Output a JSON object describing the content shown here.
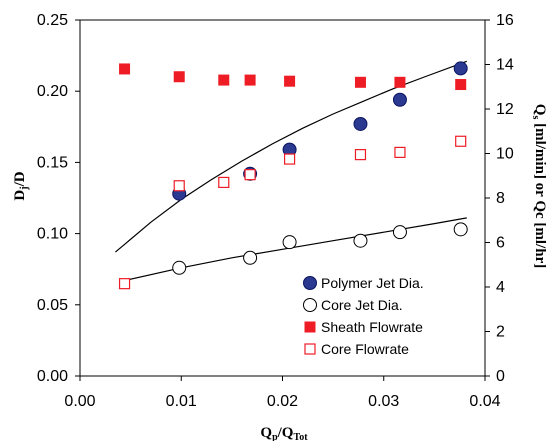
{
  "chart_data": {
    "type": "scatter",
    "xlabel": {
      "main": "Q",
      "sub1": "p",
      "mid": "/Q",
      "sub2": "Tot"
    },
    "ylabel_left": {
      "main": "D",
      "sub": "j",
      "rest": "/D"
    },
    "ylabel_right": {
      "main": "Q",
      "sub": "s",
      "rest": " [ml/min] or Qc [ml/hr]"
    },
    "xlim": [
      0,
      0.04
    ],
    "ylim_left": [
      0,
      0.25
    ],
    "ylim_right": [
      0,
      16
    ],
    "x_ticks": [
      0.0,
      0.01,
      0.02,
      0.03,
      0.04
    ],
    "x_tick_labels": [
      "0.00",
      "0.01",
      "0.02",
      "0.03",
      "0.04"
    ],
    "y_left_ticks": [
      0.0,
      0.05,
      0.1,
      0.15,
      0.2,
      0.25
    ],
    "y_left_tick_labels": [
      "0.00",
      "0.05",
      "0.10",
      "0.15",
      "0.20",
      "0.25"
    ],
    "y_right_ticks": [
      0,
      2,
      4,
      6,
      8,
      10,
      12,
      14,
      16
    ],
    "y_right_tick_labels": [
      "0",
      "2",
      "4",
      "6",
      "8",
      "10",
      "12",
      "14",
      "16"
    ],
    "grid": false,
    "legend_position": "bottom-right",
    "series": [
      {
        "name": "Polymer Jet Dia.",
        "axis": "left",
        "marker": "filled-circle",
        "color": "#2b3990",
        "x": [
          0.0098,
          0.0168,
          0.0207,
          0.0277,
          0.0316,
          0.0376
        ],
        "y": [
          0.128,
          0.142,
          0.159,
          0.177,
          0.194,
          0.216
        ]
      },
      {
        "name": "Core Jet Dia.",
        "axis": "left",
        "marker": "open-circle",
        "color": "#000000",
        "x": [
          0.0098,
          0.0168,
          0.0207,
          0.0277,
          0.0316,
          0.0376
        ],
        "y": [
          0.076,
          0.083,
          0.094,
          0.095,
          0.101,
          0.103
        ]
      },
      {
        "name": "Sheath Flowrate",
        "axis": "right",
        "marker": "filled-square",
        "color": "#ee1c25",
        "x": [
          0.0044,
          0.0098,
          0.0142,
          0.0168,
          0.0207,
          0.0277,
          0.0316,
          0.0376
        ],
        "y": [
          13.8,
          13.45,
          13.3,
          13.3,
          13.25,
          13.2,
          13.2,
          13.1
        ]
      },
      {
        "name": "Core Flowrate",
        "axis": "right",
        "marker": "open-square",
        "color": "#ee1c25",
        "x": [
          0.0044,
          0.0098,
          0.0142,
          0.0168,
          0.0207,
          0.0277,
          0.0316,
          0.0376
        ],
        "y": [
          4.15,
          8.55,
          8.7,
          9.05,
          9.75,
          9.95,
          10.05,
          10.55
        ]
      }
    ],
    "fits": [
      {
        "of": "Polymer Jet Dia.",
        "axis": "left",
        "color": "#000000",
        "x": [
          0.0035,
          0.007,
          0.01,
          0.013,
          0.016,
          0.019,
          0.022,
          0.025,
          0.028,
          0.031,
          0.034,
          0.0382
        ],
        "y": [
          0.087,
          0.108,
          0.124,
          0.138,
          0.151,
          0.163,
          0.174,
          0.184,
          0.193,
          0.202,
          0.21,
          0.221
        ]
      },
      {
        "of": "Core Jet Dia.",
        "axis": "left",
        "color": "#000000",
        "x": [
          0.0044,
          0.01,
          0.015,
          0.02,
          0.025,
          0.03,
          0.035,
          0.0382
        ],
        "y": [
          0.067,
          0.076,
          0.083,
          0.089,
          0.095,
          0.101,
          0.107,
          0.111
        ]
      }
    ]
  }
}
